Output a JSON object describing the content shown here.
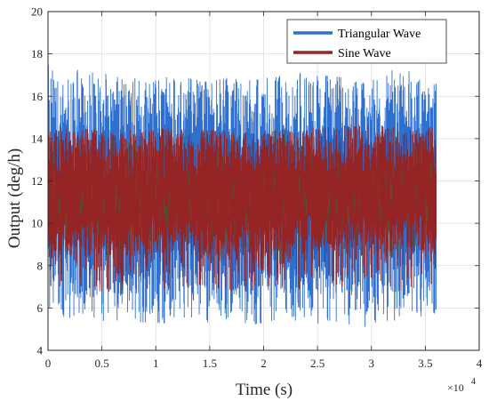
{
  "chart_data": {
    "type": "line",
    "title": "",
    "xlabel": "Time (s)",
    "ylabel": "Output (deg/h)",
    "x_exponent_label": "×10",
    "x_exponent_power": "4",
    "xlim": [
      0,
      40000
    ],
    "ylim": [
      4,
      20
    ],
    "x_ticks": [
      0,
      5000,
      10000,
      15000,
      20000,
      25000,
      30000,
      35000,
      40000
    ],
    "x_tick_labels": [
      "0",
      "0.5",
      "1",
      "1.5",
      "2",
      "2.5",
      "3",
      "3.5",
      "4"
    ],
    "y_ticks": [
      4,
      6,
      8,
      10,
      12,
      14,
      16,
      18,
      20
    ],
    "y_tick_labels": [
      "4",
      "6",
      "8",
      "10",
      "12",
      "14",
      "16",
      "18",
      "20"
    ],
    "grid": true,
    "legend_position": "top-right",
    "x_range_data": [
      0,
      36000
    ],
    "series": [
      {
        "name": "Triangular Wave",
        "color": "#2e6fd0",
        "upper_envelope": [
          17.6,
          17.2,
          17.0,
          17.1,
          16.9,
          17.0,
          16.8,
          17.2,
          17.0,
          16.8,
          17.4,
          16.6
        ],
        "band_high": [
          16.5,
          16.3,
          16.2,
          16.2,
          16.1,
          16.1,
          16.0,
          16.1,
          16.1,
          16.0,
          16.0,
          15.9
        ],
        "band_low": [
          6.5,
          6.5,
          6.6,
          6.5,
          6.6,
          6.5,
          6.6,
          6.6,
          6.6,
          6.6,
          6.6,
          6.6
        ],
        "lower_envelope": [
          5.5,
          5.4,
          5.3,
          5.2,
          5.2,
          5.3,
          5.2,
          5.3,
          5.2,
          5.1,
          5.4,
          5.6
        ]
      },
      {
        "name": "Sine Wave",
        "color": "#952424",
        "upper_envelope": [
          14.7,
          14.5,
          14.4,
          14.5,
          14.5,
          14.4,
          14.3,
          14.5,
          14.6,
          14.7,
          14.6,
          14.5
        ],
        "band_high": [
          14.1,
          14.1,
          14.0,
          14.1,
          14.1,
          14.1,
          14.1,
          14.2,
          14.2,
          14.2,
          14.2,
          14.2
        ],
        "band_low": [
          8.3,
          8.4,
          8.4,
          8.5,
          8.5,
          8.4,
          8.4,
          8.5,
          8.6,
          8.6,
          8.6,
          8.6
        ],
        "lower_envelope": [
          6.5,
          6.7,
          6.8,
          6.9,
          6.9,
          6.8,
          6.8,
          6.8,
          6.9,
          6.9,
          6.8,
          6.9
        ]
      }
    ]
  }
}
